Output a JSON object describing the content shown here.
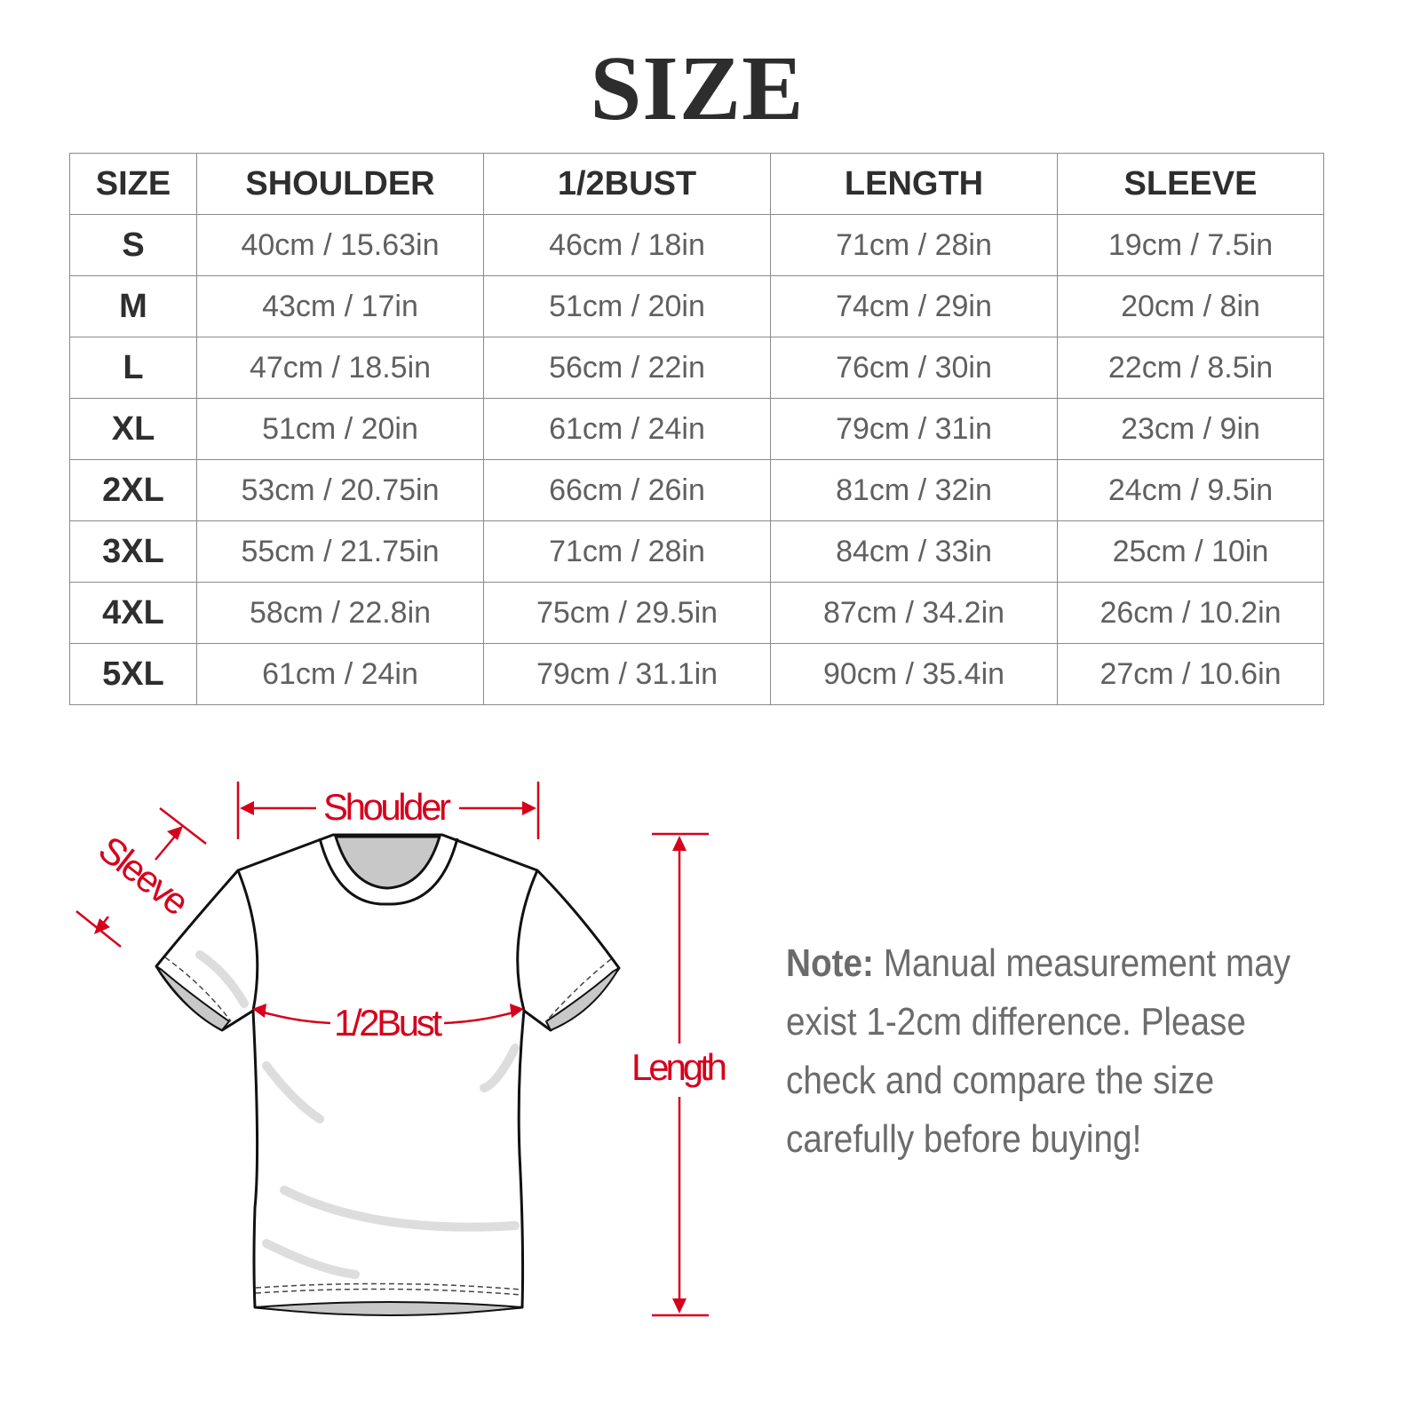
{
  "title": "SIZE",
  "table": {
    "headers": [
      "SIZE",
      "SHOULDER",
      "1/2BUST",
      "LENGTH",
      "SLEEVE"
    ],
    "rows": [
      [
        "S",
        "40cm / 15.63in",
        "46cm / 18in",
        "71cm / 28in",
        "19cm / 7.5in"
      ],
      [
        "M",
        "43cm / 17in",
        "51cm / 20in",
        "74cm / 29in",
        "20cm / 8in"
      ],
      [
        "L",
        "47cm / 18.5in",
        "56cm / 22in",
        "76cm / 30in",
        "22cm / 8.5in"
      ],
      [
        "XL",
        "51cm / 20in",
        "61cm / 24in",
        "79cm / 31in",
        "23cm / 9in"
      ],
      [
        "2XL",
        "53cm / 20.75in",
        "66cm / 26in",
        "81cm / 32in",
        "24cm / 9.5in"
      ],
      [
        "3XL",
        "55cm / 21.75in",
        "71cm / 28in",
        "84cm / 33in",
        "25cm / 10in"
      ],
      [
        "4XL",
        "58cm / 22.8in",
        "75cm / 29.5in",
        "87cm / 34.2in",
        "26cm / 10.2in"
      ],
      [
        "5XL",
        "61cm / 24in",
        "79cm / 31.1in",
        "90cm / 35.4in",
        "27cm / 10.6in"
      ]
    ]
  },
  "diagram": {
    "shoulder": "Shoulder",
    "sleeve": "Sleeve",
    "bust": "1/2Bust",
    "length": "Length",
    "accent_color": "#d6001c"
  },
  "note": {
    "label": "Note:",
    "text": "Manual measurement may exist 1-2cm difference. Please check and compare the size carefully before buying!"
  }
}
